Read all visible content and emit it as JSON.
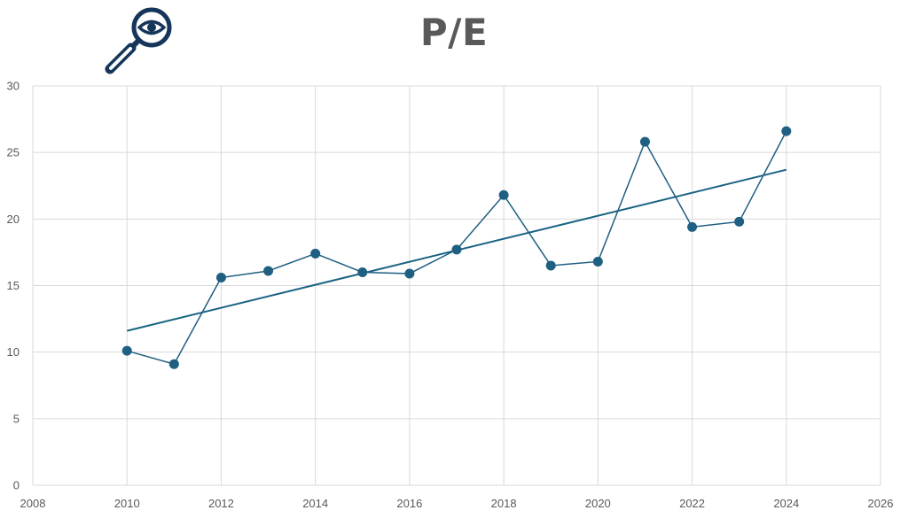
{
  "page": {
    "title": "P/E",
    "logo_icon": "magnifier-eye-icon"
  },
  "chart_data": {
    "type": "scatter",
    "title": "P/E",
    "xlabel": "",
    "ylabel": "",
    "xlim": [
      2008,
      2026
    ],
    "ylim": [
      0,
      30
    ],
    "x_ticks": [
      2008,
      2010,
      2012,
      2014,
      2016,
      2018,
      2020,
      2022,
      2024,
      2026
    ],
    "y_ticks": [
      0,
      5,
      10,
      15,
      20,
      25,
      30
    ],
    "grid": true,
    "legend": "none",
    "series": [
      {
        "x": [
          2010,
          2011,
          2012,
          2013,
          2014,
          2015,
          2016,
          2017,
          2018,
          2019,
          2020,
          2021,
          2022,
          2023,
          2024
        ],
        "y": [
          10.1,
          9.1,
          15.6,
          16.1,
          17.4,
          16.0,
          15.9,
          17.7,
          21.8,
          16.5,
          16.8,
          25.8,
          19.4,
          19.8,
          26.6
        ],
        "markers": true,
        "connected": true
      }
    ],
    "trendline": {
      "type": "linear",
      "x": [
        2010,
        2024
      ],
      "y": [
        11.6,
        23.7
      ]
    },
    "colors": {
      "series": "#1F5F82",
      "trendline": "#1A6383",
      "grid": "#D9D9D9",
      "tick_text": "#595959",
      "title": "#595959",
      "logo": "#16355A"
    }
  }
}
